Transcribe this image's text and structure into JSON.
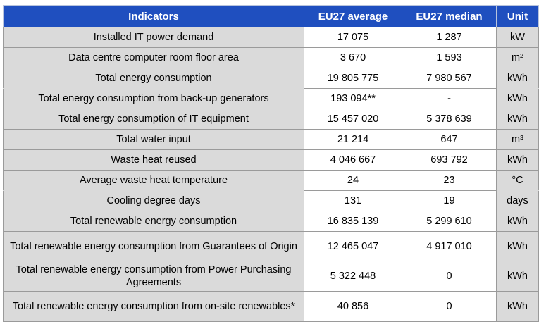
{
  "table": {
    "headers": {
      "indicator": "Indicators",
      "average": "EU27 average",
      "median": "EU27 median",
      "unit": "Unit"
    },
    "rows": [
      {
        "indicator": "Installed IT power demand",
        "average": "17 075",
        "median": "1 287",
        "unit": "kW"
      },
      {
        "indicator": "Data centre computer room floor area",
        "average": "3 670",
        "median": "1 593",
        "unit": "m²"
      },
      {
        "indicator": "Total energy consumption",
        "average": "19 805 775",
        "median": "7 980 567",
        "unit": "kWh"
      },
      {
        "indicator": "Total energy consumption from back-up generators",
        "average": "193 094**",
        "median": "-",
        "unit": "kWh"
      },
      {
        "indicator": "Total energy consumption of IT equipment",
        "average": "15 457 020",
        "median": "5 378 639",
        "unit": "kWh"
      },
      {
        "indicator": "Total water input",
        "average": "21 214",
        "median": "647",
        "unit": "m³"
      },
      {
        "indicator": "Waste heat reused",
        "average": "4 046 667",
        "median": "693 792",
        "unit": "kWh"
      },
      {
        "indicator": "Average waste heat temperature",
        "average": "24",
        "median": "23",
        "unit": "°C"
      },
      {
        "indicator": "Cooling degree days",
        "average": "131",
        "median": "19",
        "unit": "days"
      },
      {
        "indicator": "Total renewable energy consumption",
        "average": "16 835 139",
        "median": "5 299 610",
        "unit": "kWh"
      },
      {
        "indicator": "Total renewable energy consumption from Guarantees of Origin",
        "average": "12 465 047",
        "median": "4 917 010",
        "unit": "kWh"
      },
      {
        "indicator": "Total renewable energy consumption from Power Purchasing Agreements",
        "average": "5 322 448",
        "median": "0",
        "unit": "kWh"
      },
      {
        "indicator": "Total renewable energy consumption from on-site renewables*",
        "average": "40 856",
        "median": "0",
        "unit": "kWh"
      }
    ]
  }
}
